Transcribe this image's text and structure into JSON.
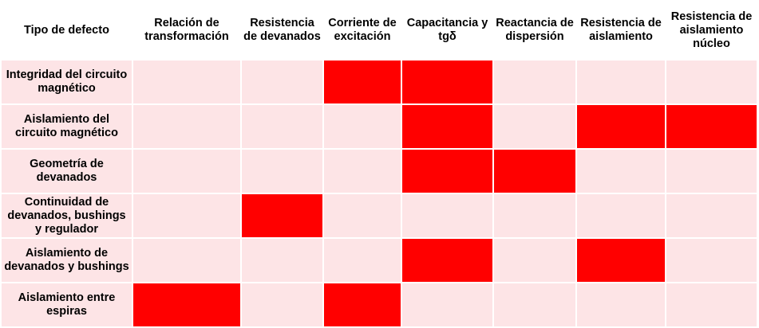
{
  "table": {
    "headers": [
      "Tipo de defecto",
      "Relación de transformación",
      "Resistencia de devanados",
      "Corriente de excitación",
      "Capacitancia y tgδ",
      "Reactancia de dispersión",
      "Resistencia de aislamiento",
      "Resistencia de aislamiento núcleo"
    ],
    "rows": [
      {
        "label": "Integridad del circuito magnético",
        "marks": [
          false,
          false,
          true,
          true,
          false,
          false,
          false
        ]
      },
      {
        "label": "Aislamiento del circuito magnético",
        "marks": [
          false,
          false,
          false,
          true,
          false,
          true,
          true
        ]
      },
      {
        "label": "Geometría de devanados",
        "marks": [
          false,
          false,
          false,
          true,
          true,
          false,
          false
        ]
      },
      {
        "label": "Continuidad de devanados, bushings y regulador",
        "marks": [
          false,
          true,
          false,
          false,
          false,
          false,
          false
        ]
      },
      {
        "label": "Aislamiento de devanados y bushings",
        "marks": [
          false,
          false,
          false,
          true,
          false,
          true,
          false
        ]
      },
      {
        "label": "Aislamiento entre espiras",
        "marks": [
          true,
          false,
          true,
          false,
          false,
          false,
          false
        ]
      }
    ]
  },
  "colors": {
    "marked_cell": "#ff0000",
    "empty_cell": "#fde4e6",
    "header_bg": "#ffffff"
  }
}
